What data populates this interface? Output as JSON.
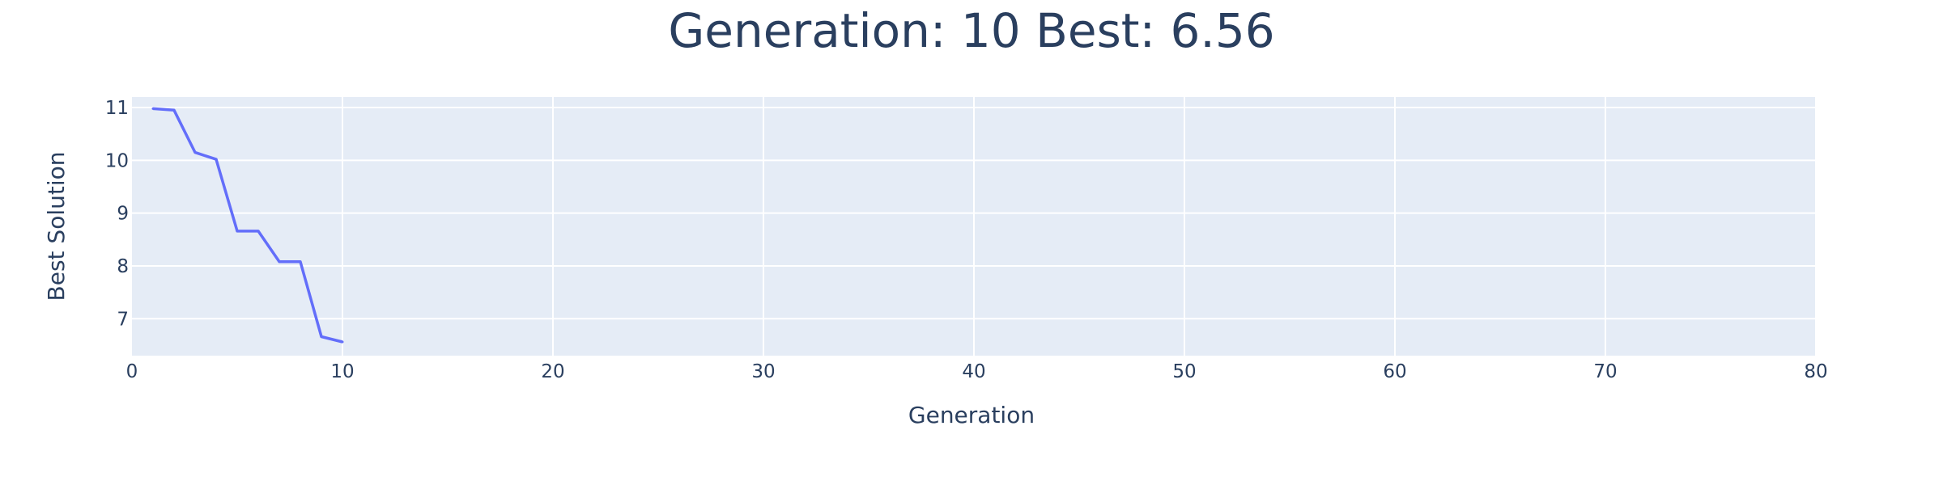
{
  "chart_data": {
    "type": "line",
    "title": "Generation: 10 Best: 6.56",
    "xlabel": "Generation",
    "ylabel": "Best Solution",
    "xlim": [
      0,
      80
    ],
    "ylim": [
      6.3,
      11.2
    ],
    "xticks": [
      0,
      10,
      20,
      30,
      40,
      50,
      60,
      70,
      80
    ],
    "yticks": [
      7,
      8,
      9,
      10,
      11
    ],
    "grid": true,
    "legend": "none",
    "series": [
      {
        "x": [
          1,
          2,
          3,
          4,
          5,
          6,
          7,
          8,
          9,
          10
        ],
        "y": [
          10.98,
          10.95,
          10.15,
          10.02,
          8.66,
          8.66,
          8.08,
          8.08,
          6.66,
          6.56
        ]
      }
    ],
    "colors": {
      "line": "#636efa",
      "plot_bg": "#e5ecf6",
      "text": "#2a3f5f",
      "grid": "#ffffff"
    }
  }
}
